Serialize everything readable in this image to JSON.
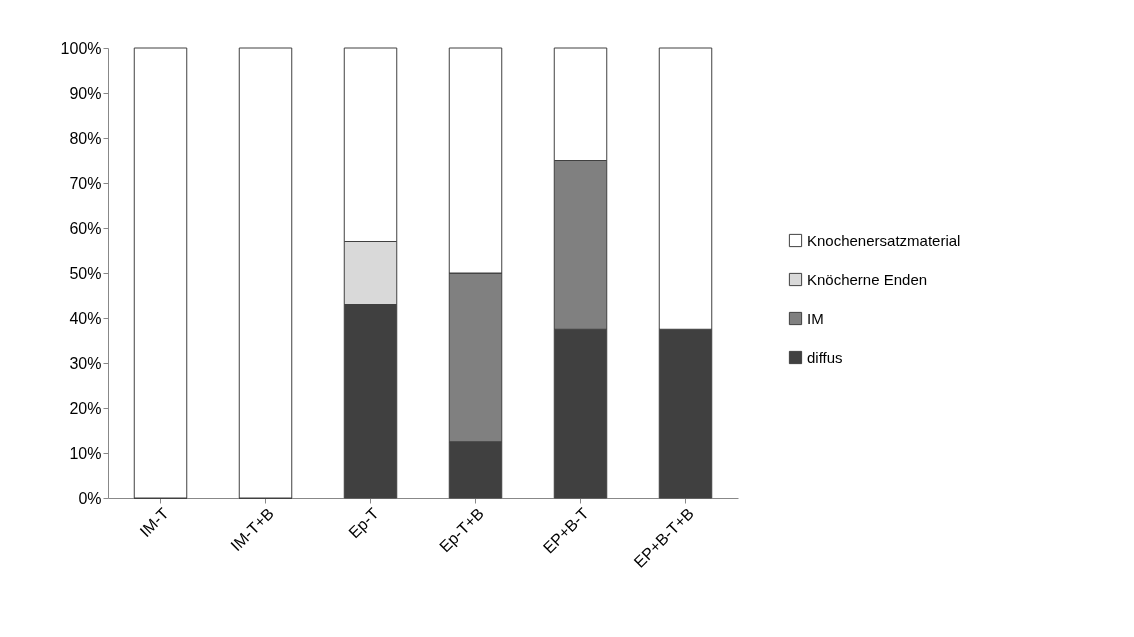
{
  "chart_data": {
    "type": "bar",
    "stacked": true,
    "categories": [
      "IM-T",
      "IM-T+B",
      "Ep-T",
      "Ep-T+B",
      "EP+B-T",
      "EP+B-T+B"
    ],
    "series": [
      {
        "name": "diffus",
        "color": "#404040",
        "values": [
          0,
          0,
          43,
          12.5,
          37.5,
          37.5
        ]
      },
      {
        "name": "IM",
        "color": "#808080",
        "values": [
          0,
          0,
          0,
          37.5,
          37.5,
          0
        ]
      },
      {
        "name": "Knöcherne Enden",
        "color": "#d9d9d9",
        "values": [
          0,
          0,
          14,
          0,
          0,
          0
        ]
      },
      {
        "name": "Knochenersatzmaterial",
        "color": "#ffffff",
        "values": [
          100,
          100,
          43,
          50,
          25,
          62.5
        ]
      }
    ],
    "ylim": [
      0,
      100
    ],
    "yticks": [
      {
        "value": 0,
        "label": "0%"
      },
      {
        "value": 10,
        "label": "10%"
      },
      {
        "value": 20,
        "label": "20%"
      },
      {
        "value": 30,
        "label": "30%"
      },
      {
        "value": 40,
        "label": "40%"
      },
      {
        "value": 50,
        "label": "50%"
      },
      {
        "value": 60,
        "label": "60%"
      },
      {
        "value": 70,
        "label": "70%"
      },
      {
        "value": 80,
        "label": "80%"
      },
      {
        "value": 90,
        "label": "90%"
      },
      {
        "value": 100,
        "label": "100%"
      }
    ],
    "grid": false,
    "legend": "right"
  }
}
